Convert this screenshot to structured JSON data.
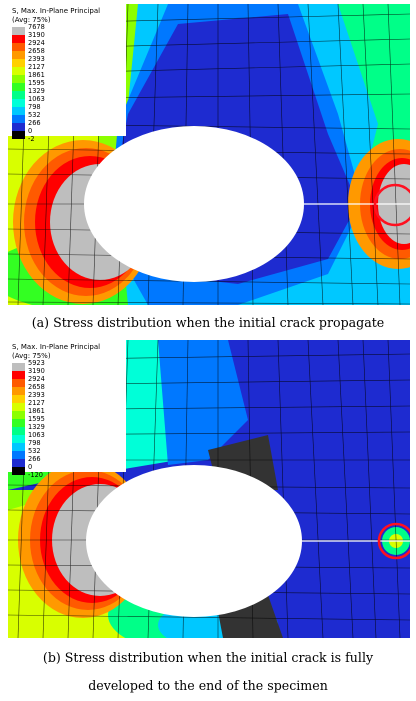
{
  "colors": {
    "legend": [
      "#bebebe",
      "#ff0000",
      "#ff5a00",
      "#ff9900",
      "#ffd000",
      "#d8ff00",
      "#8cff00",
      "#33ff22",
      "#00ff88",
      "#00ffd8",
      "#00c8ff",
      "#0078ff",
      "#1e2bd0",
      "#000000"
    ]
  },
  "panel_a": {
    "legend": {
      "title_line1": "S, Max. In-Plane Principal",
      "title_line2": "(Avg: 75%)",
      "values": [
        "7678",
        "3190",
        "2924",
        "2658",
        "2393",
        "2127",
        "1861",
        "1595",
        "1329",
        "1063",
        "798",
        "532",
        "266",
        "0",
        "-2"
      ]
    },
    "caption": "(a) Stress distribution when the initial crack propagate"
  },
  "panel_b": {
    "legend": {
      "title_line1": "S, Max. In-Plane Principal",
      "title_line2": "(Avg: 75%)",
      "values": [
        "5923",
        "3190",
        "2924",
        "2658",
        "2393",
        "2127",
        "1861",
        "1595",
        "1329",
        "1063",
        "798",
        "532",
        "266",
        "0",
        "-120"
      ]
    },
    "caption_line1": "(b) Stress distribution when the initial crack is fully",
    "caption_line2": "developed to the end of the specimen"
  }
}
